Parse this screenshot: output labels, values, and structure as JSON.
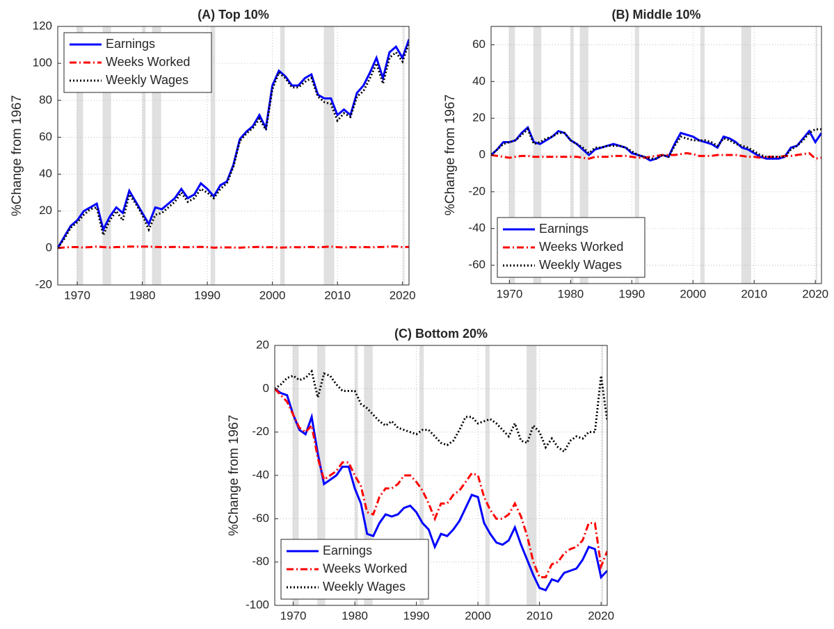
{
  "chart_data": [
    {
      "type": "line",
      "title": "(A) Top 10%",
      "ylabel": "%Change from 1967",
      "x": [
        1967,
        1968,
        1969,
        1970,
        1971,
        1972,
        1973,
        1974,
        1975,
        1976,
        1977,
        1978,
        1979,
        1980,
        1981,
        1982,
        1983,
        1984,
        1985,
        1986,
        1987,
        1988,
        1989,
        1990,
        1991,
        1992,
        1993,
        1994,
        1995,
        1996,
        1997,
        1998,
        1999,
        2000,
        2001,
        2002,
        2003,
        2004,
        2005,
        2006,
        2007,
        2008,
        2009,
        2010,
        2011,
        2012,
        2013,
        2014,
        2015,
        2016,
        2017,
        2018,
        2019,
        2020,
        2021
      ],
      "xlim": [
        1967,
        2021
      ],
      "xticks": [
        1970,
        1980,
        1990,
        2000,
        2010,
        2020
      ],
      "ylim": [
        -20,
        120
      ],
      "yticks": [
        -20,
        0,
        20,
        40,
        60,
        80,
        100,
        120
      ],
      "grid": true,
      "legend": "upper left",
      "shaded_regions": [
        [
          1969.9,
          1970.9
        ],
        [
          1973.9,
          1975.2
        ],
        [
          1980.0,
          1980.5
        ],
        [
          1981.5,
          1982.9
        ],
        [
          1990.5,
          1991.2
        ],
        [
          2001.2,
          2001.9
        ],
        [
          2007.9,
          2009.5
        ],
        [
          2020.1,
          2020.3
        ]
      ],
      "series": [
        {
          "name": "Earnings",
          "color": "#0000ff",
          "linestyle": "solid",
          "values": [
            0,
            6,
            12,
            15,
            20,
            22,
            24,
            10,
            17,
            22,
            19,
            31,
            25,
            19,
            13,
            22,
            21,
            24,
            27,
            32,
            27,
            29,
            35,
            32,
            28,
            34,
            36,
            45,
            59,
            63,
            66,
            72,
            65,
            88,
            96,
            93,
            88,
            88,
            92,
            94,
            83,
            81,
            81,
            72,
            75,
            72,
            84,
            88,
            95,
            103,
            92,
            106,
            109,
            103,
            113
          ]
        },
        {
          "name": "Weeks Worked",
          "color": "#ff0000",
          "linestyle": "dashdot",
          "values": [
            0,
            0.3,
            0.5,
            0.5,
            0.3,
            0.5,
            0.8,
            0.5,
            0.3,
            0.5,
            0.6,
            0.8,
            0.8,
            0.8,
            0.8,
            0.6,
            0.5,
            0.5,
            0.6,
            0.5,
            0.4,
            0.6,
            0.6,
            0.5,
            0.2,
            0.3,
            0.3,
            0.3,
            0.2,
            0.4,
            0.5,
            0.6,
            0.4,
            0.5,
            0.2,
            0.3,
            0.5,
            0.4,
            0.5,
            0.6,
            0.4,
            0.6,
            0.8,
            0.5,
            0.3,
            0.5,
            0.4,
            0.5,
            0.4,
            0.5,
            0.6,
            0.8,
            0.9,
            0.5,
            0.6
          ]
        },
        {
          "name": "Weekly Wages",
          "color": "#000000",
          "linestyle": "dotted",
          "values": [
            0,
            5,
            11,
            14,
            18,
            21,
            22,
            7,
            15,
            20,
            15,
            29,
            24,
            18,
            10,
            18,
            19,
            22,
            25,
            30,
            25,
            27,
            32,
            30,
            27,
            32,
            35,
            44,
            58,
            62,
            65,
            70,
            64,
            86,
            95,
            92,
            87,
            87,
            90,
            92,
            82,
            79,
            78,
            69,
            73,
            71,
            82,
            85,
            92,
            100,
            89,
            103,
            106,
            101,
            111
          ]
        }
      ]
    },
    {
      "type": "line",
      "title": "(B) Middle 10%",
      "ylabel": "%Change from 1967",
      "x": [
        1967,
        1968,
        1969,
        1970,
        1971,
        1972,
        1973,
        1974,
        1975,
        1976,
        1977,
        1978,
        1979,
        1980,
        1981,
        1982,
        1983,
        1984,
        1985,
        1986,
        1987,
        1988,
        1989,
        1990,
        1991,
        1992,
        1993,
        1994,
        1995,
        1996,
        1997,
        1998,
        1999,
        2000,
        2001,
        2002,
        2003,
        2004,
        2005,
        2006,
        2007,
        2008,
        2009,
        2010,
        2011,
        2012,
        2013,
        2014,
        2015,
        2016,
        2017,
        2018,
        2019,
        2020,
        2021
      ],
      "xlim": [
        1967,
        2021
      ],
      "xticks": [
        1970,
        1980,
        1990,
        2000,
        2010,
        2020
      ],
      "ylim": [
        -70,
        70
      ],
      "yticks": [
        -60,
        -40,
        -20,
        0,
        20,
        40,
        60
      ],
      "grid": true,
      "legend": "lower left",
      "shaded_regions": [
        [
          1969.9,
          1970.9
        ],
        [
          1973.9,
          1975.2
        ],
        [
          1980.0,
          1980.5
        ],
        [
          1981.5,
          1982.9
        ],
        [
          1990.5,
          1991.2
        ],
        [
          2001.2,
          2001.9
        ],
        [
          2007.9,
          2009.5
        ],
        [
          2020.1,
          2020.3
        ]
      ],
      "series": [
        {
          "name": "Earnings",
          "color": "#0000ff",
          "linestyle": "solid",
          "values": [
            0,
            3,
            7,
            7,
            8,
            12,
            15,
            7,
            6,
            8,
            10,
            13,
            12,
            8,
            6,
            3,
            0,
            3,
            4,
            5,
            6,
            5,
            4,
            1,
            0,
            -1,
            -3,
            -2,
            0,
            -1,
            6,
            12,
            11,
            10,
            8,
            7,
            6,
            4,
            10,
            9,
            7,
            4,
            3,
            1,
            -1,
            -2,
            -2,
            -2,
            -1,
            4,
            5,
            9,
            13,
            7,
            12
          ]
        },
        {
          "name": "Weeks Worked",
          "color": "#ff0000",
          "linestyle": "dashdot",
          "values": [
            0,
            -0.5,
            -1,
            -1.5,
            -1,
            -0.5,
            -0.5,
            -1,
            -1,
            -1,
            -1,
            -1,
            -1,
            -1,
            -1,
            -1.5,
            -2,
            -1,
            -1,
            -1,
            -0.5,
            -0.5,
            -0.5,
            -1,
            -1.5,
            -1.5,
            -1,
            -0.5,
            0,
            0,
            0,
            0.5,
            1,
            0.5,
            -0.5,
            -0.5,
            -0.5,
            0,
            0,
            0,
            0,
            -0.5,
            -1,
            -1,
            -1.5,
            -1,
            -1,
            -1,
            -0.5,
            -0.5,
            0,
            0.5,
            1,
            -2,
            -1.5
          ]
        },
        {
          "name": "Weekly Wages",
          "color": "#000000",
          "linestyle": "dotted",
          "values": [
            0,
            3,
            6,
            7,
            8,
            11,
            14,
            6,
            7,
            9,
            10,
            12,
            12,
            8,
            6,
            4,
            1,
            4,
            4,
            5,
            5,
            5,
            4,
            2,
            0,
            -1,
            -2,
            -2,
            0,
            -1,
            5,
            10,
            9,
            8,
            8,
            8,
            7,
            5,
            9,
            8,
            6,
            5,
            4,
            2,
            0,
            -1,
            -1,
            -1,
            -1,
            3,
            5,
            8,
            12,
            14,
            14
          ]
        }
      ]
    },
    {
      "type": "line",
      "title": "(C) Bottom 20%",
      "ylabel": "%Change from 1967",
      "x": [
        1967,
        1968,
        1969,
        1970,
        1971,
        1972,
        1973,
        1974,
        1975,
        1976,
        1977,
        1978,
        1979,
        1980,
        1981,
        1982,
        1983,
        1984,
        1985,
        1986,
        1987,
        1988,
        1989,
        1990,
        1991,
        1992,
        1993,
        1994,
        1995,
        1996,
        1997,
        1998,
        1999,
        2000,
        2001,
        2002,
        2003,
        2004,
        2005,
        2006,
        2007,
        2008,
        2009,
        2010,
        2011,
        2012,
        2013,
        2014,
        2015,
        2016,
        2017,
        2018,
        2019,
        2020,
        2021
      ],
      "xlim": [
        1967,
        2021
      ],
      "xticks": [
        1970,
        1980,
        1990,
        2000,
        2010,
        2020
      ],
      "ylim": [
        -100,
        20
      ],
      "yticks": [
        -100,
        -80,
        -60,
        -40,
        -20,
        0,
        20
      ],
      "grid": true,
      "legend": "lower left",
      "shaded_regions": [
        [
          1969.9,
          1970.9
        ],
        [
          1973.9,
          1975.2
        ],
        [
          1980.0,
          1980.5
        ],
        [
          1981.5,
          1982.9
        ],
        [
          1990.5,
          1991.2
        ],
        [
          2001.2,
          2001.9
        ],
        [
          2007.9,
          2009.5
        ],
        [
          2020.1,
          2020.3
        ]
      ],
      "series": [
        {
          "name": "Earnings",
          "color": "#0000ff",
          "linestyle": "solid",
          "values": [
            0,
            -2,
            -3,
            -12,
            -19,
            -21,
            -13,
            -30,
            -44,
            -42,
            -40,
            -36,
            -36,
            -46,
            -53,
            -67,
            -68,
            -62,
            -58,
            -59,
            -58,
            -55,
            -54,
            -57,
            -62,
            -65,
            -73,
            -67,
            -68,
            -65,
            -61,
            -55,
            -49,
            -50,
            -62,
            -67,
            -71,
            -72,
            -70,
            -64,
            -72,
            -79,
            -86,
            -92,
            -93,
            -88,
            -89,
            -85,
            -84,
            -83,
            -79,
            -73,
            -74,
            -87,
            -84
          ]
        },
        {
          "name": "Weeks Worked",
          "color": "#ff0000",
          "linestyle": "dashdot",
          "values": [
            0,
            -3,
            -6,
            -12,
            -18,
            -20,
            -17,
            -32,
            -42,
            -40,
            -38,
            -34,
            -34,
            -40,
            -45,
            -57,
            -58,
            -50,
            -46,
            -46,
            -44,
            -40,
            -40,
            -43,
            -47,
            -53,
            -60,
            -53,
            -53,
            -49,
            -47,
            -43,
            -39,
            -40,
            -50,
            -56,
            -60,
            -60,
            -58,
            -53,
            -59,
            -68,
            -80,
            -87,
            -87,
            -81,
            -80,
            -76,
            -74,
            -73,
            -70,
            -62,
            -62,
            -82,
            -75
          ]
        },
        {
          "name": "Weekly Wages",
          "color": "#000000",
          "linestyle": "dotted",
          "values": [
            0,
            2,
            5,
            6,
            4,
            5,
            8,
            -4,
            7,
            6,
            2,
            -1,
            -1,
            -1,
            -7,
            -9,
            -12,
            -15,
            -17,
            -15,
            -18,
            -19,
            -20,
            -21,
            -19,
            -19,
            -22,
            -25,
            -26,
            -24,
            -19,
            -13,
            -13,
            -16,
            -15,
            -14,
            -16,
            -19,
            -22,
            -16,
            -24,
            -25,
            -17,
            -20,
            -27,
            -23,
            -27,
            -29,
            -24,
            -22,
            -23,
            -20,
            -20,
            6,
            -15
          ]
        }
      ]
    }
  ]
}
